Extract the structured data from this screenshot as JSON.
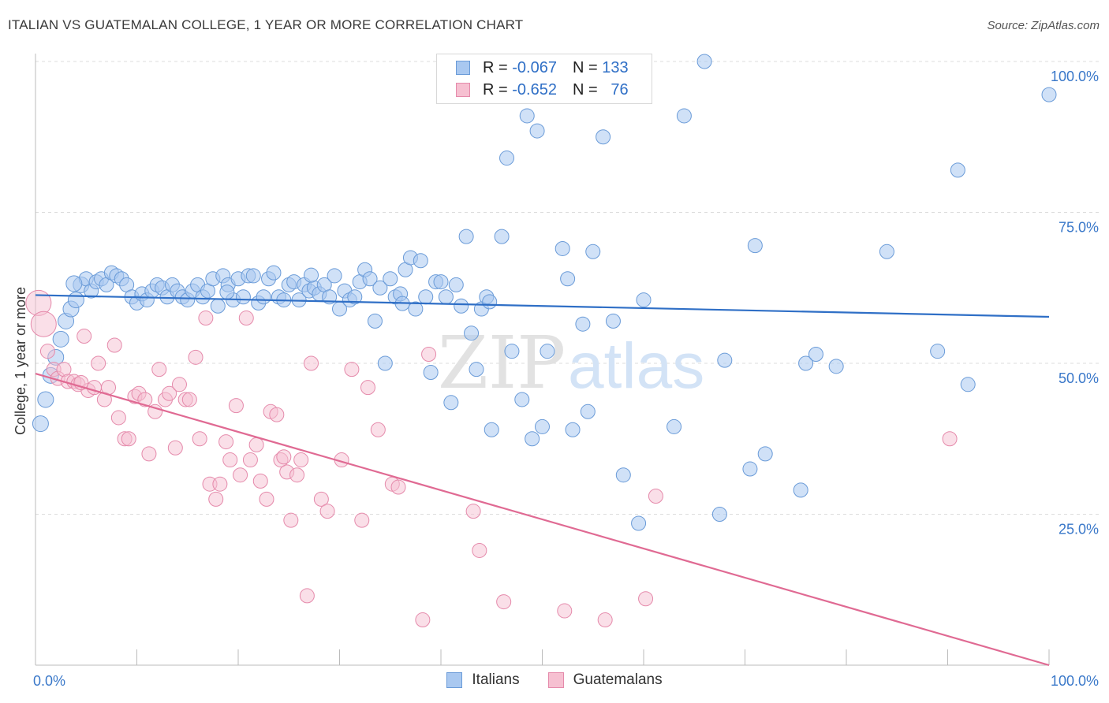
{
  "title": "ITALIAN VS GUATEMALAN COLLEGE, 1 YEAR OR MORE CORRELATION CHART",
  "source": "Source: ZipAtlas.com",
  "watermark": {
    "zip": "ZIP",
    "atlas": "atlas"
  },
  "legend_top": [
    {
      "r_label": "R =",
      "r_value": "-0.067",
      "n_label": "N =",
      "n_value": "133"
    },
    {
      "r_label": "R =",
      "r_value": "-0.652",
      "n_label": "N =",
      "n_value": "76"
    }
  ],
  "legend_bottom": [
    {
      "label": "Italians"
    },
    {
      "label": "Guatemalans"
    }
  ],
  "colors": {
    "italians_fill": "#a9c8f0",
    "italians_stroke": "#6a9bd8",
    "italians_line": "#2f6fc6",
    "guatemalans_fill": "#f6c0d1",
    "guatemalans_stroke": "#e58aab",
    "guatemalans_line": "#e06a93",
    "tick_label": "#3a78c9",
    "grid": "#dddddd"
  },
  "chart_data": {
    "type": "scatter",
    "title": "ITALIAN VS GUATEMALAN COLLEGE, 1 YEAR OR MORE CORRELATION CHART",
    "xlabel": "",
    "ylabel": "College, 1 year or more",
    "xlim": [
      0,
      100
    ],
    "ylim": [
      0,
      100
    ],
    "x_tick_labels": [
      "0.0%",
      "100.0%"
    ],
    "y_ticks": [
      25,
      50,
      75,
      100
    ],
    "y_tick_labels": [
      "25.0%",
      "50.0%",
      "75.0%",
      "100.0%"
    ],
    "grid": "horizontal dashed",
    "legend_position": "top-center",
    "series": [
      {
        "name": "Italians",
        "r": -0.067,
        "n": 133,
        "trend": [
          [
            0,
            61.3
          ],
          [
            100,
            57.7
          ]
        ],
        "points": [
          [
            0.5,
            40
          ],
          [
            1,
            44
          ],
          [
            1.5,
            48
          ],
          [
            2,
            51
          ],
          [
            2.5,
            54
          ],
          [
            3,
            57
          ],
          [
            3.5,
            59
          ],
          [
            4,
            60.5
          ],
          [
            4.5,
            63
          ],
          [
            5,
            64
          ],
          [
            5.5,
            62
          ],
          [
            6,
            63.5
          ],
          [
            6.5,
            64
          ],
          [
            7,
            63
          ],
          [
            7.5,
            65
          ],
          [
            8,
            64.5
          ],
          [
            8.5,
            64
          ],
          [
            9,
            63
          ],
          [
            9.5,
            61
          ],
          [
            10,
            60
          ],
          [
            10.5,
            61.5
          ],
          [
            11,
            60.5
          ],
          [
            11.5,
            62
          ],
          [
            12,
            63
          ],
          [
            12.5,
            62.5
          ],
          [
            13,
            61
          ],
          [
            13.5,
            63
          ],
          [
            14,
            62
          ],
          [
            14.5,
            61
          ],
          [
            15,
            60.5
          ],
          [
            15.5,
            62
          ],
          [
            16,
            63
          ],
          [
            16.5,
            61
          ],
          [
            17,
            62
          ],
          [
            17.5,
            64
          ],
          [
            18,
            59.5
          ],
          [
            18.5,
            64.5
          ],
          [
            19,
            63
          ],
          [
            19.5,
            60.5
          ],
          [
            20,
            64
          ],
          [
            20.5,
            61
          ],
          [
            21,
            64.5
          ],
          [
            21.5,
            64.5
          ],
          [
            22,
            60
          ],
          [
            22.5,
            61
          ],
          [
            23,
            64
          ],
          [
            23.5,
            65
          ],
          [
            24,
            61
          ],
          [
            24.5,
            60.5
          ],
          [
            25,
            63
          ],
          [
            25.5,
            63.5
          ],
          [
            26,
            60.5
          ],
          [
            26.5,
            63
          ],
          [
            27,
            62
          ],
          [
            27.5,
            62.5
          ],
          [
            28,
            61.5
          ],
          [
            28.5,
            63
          ],
          [
            29,
            61
          ],
          [
            29.5,
            64.5
          ],
          [
            30,
            59
          ],
          [
            30.5,
            62
          ],
          [
            31,
            60.5
          ],
          [
            31.5,
            61
          ],
          [
            32,
            63.5
          ],
          [
            32.5,
            65.5
          ],
          [
            33,
            64
          ],
          [
            33.5,
            57
          ],
          [
            34,
            62.5
          ],
          [
            34.5,
            50
          ],
          [
            35,
            64
          ],
          [
            35.5,
            61
          ],
          [
            36,
            61.5
          ],
          [
            36.5,
            65.5
          ],
          [
            37,
            67.5
          ],
          [
            37.5,
            59
          ],
          [
            38,
            67
          ],
          [
            38.5,
            61
          ],
          [
            39,
            48.5
          ],
          [
            39.5,
            63.5
          ],
          [
            40,
            63.5
          ],
          [
            40.5,
            61
          ],
          [
            41,
            43.5
          ],
          [
            41.5,
            63
          ],
          [
            42,
            59.5
          ],
          [
            42.5,
            71
          ],
          [
            43,
            55
          ],
          [
            43.5,
            49
          ],
          [
            44,
            59
          ],
          [
            44.5,
            61
          ],
          [
            45,
            39
          ],
          [
            46,
            71
          ],
          [
            46.5,
            84
          ],
          [
            47,
            52
          ],
          [
            48,
            44
          ],
          [
            48.5,
            91
          ],
          [
            49,
            37.5
          ],
          [
            49.5,
            88.5
          ],
          [
            50,
            39.5
          ],
          [
            50.5,
            52
          ],
          [
            52,
            69
          ],
          [
            52.5,
            64
          ],
          [
            53,
            39
          ],
          [
            54,
            56.5
          ],
          [
            54.5,
            42
          ],
          [
            55,
            68.5
          ],
          [
            56,
            87.5
          ],
          [
            57,
            57
          ],
          [
            58,
            31.5
          ],
          [
            59.5,
            23.5
          ],
          [
            60,
            60.5
          ],
          [
            63,
            39.5
          ],
          [
            64,
            91
          ],
          [
            66,
            100
          ],
          [
            67.5,
            25
          ],
          [
            68,
            50.5
          ],
          [
            70.5,
            32.5
          ],
          [
            71,
            69.5
          ],
          [
            72,
            35
          ],
          [
            75.5,
            29
          ],
          [
            76,
            50
          ],
          [
            77,
            51.5
          ],
          [
            79,
            49.5
          ],
          [
            84,
            68.5
          ],
          [
            89,
            52
          ],
          [
            91,
            82
          ],
          [
            92,
            46.5
          ],
          [
            100,
            94.5
          ],
          [
            52.5,
            96
          ],
          [
            3.8,
            63.2
          ],
          [
            18.9,
            61.8
          ],
          [
            27.2,
            64.6
          ],
          [
            36.2,
            59.9
          ],
          [
            44.8,
            60.2
          ]
        ]
      },
      {
        "name": "Guatemalans",
        "r": -0.652,
        "n": 76,
        "trend": [
          [
            0,
            48.3
          ],
          [
            100,
            0
          ]
        ],
        "points": [
          [
            0.3,
            60
          ],
          [
            0.8,
            56.5
          ],
          [
            1.2,
            52
          ],
          [
            1.8,
            49
          ],
          [
            2.2,
            47.5
          ],
          [
            2.8,
            49
          ],
          [
            3.2,
            47
          ],
          [
            3.8,
            47
          ],
          [
            4.2,
            46.5
          ],
          [
            4.8,
            54.5
          ],
          [
            5.2,
            45.5
          ],
          [
            5.8,
            46
          ],
          [
            6.2,
            50
          ],
          [
            6.8,
            44
          ],
          [
            7.2,
            46
          ],
          [
            7.8,
            53
          ],
          [
            8.2,
            41
          ],
          [
            8.8,
            37.5
          ],
          [
            9.2,
            37.5
          ],
          [
            9.8,
            44.5
          ],
          [
            10.2,
            45
          ],
          [
            10.8,
            44
          ],
          [
            11.2,
            35
          ],
          [
            11.8,
            42
          ],
          [
            12.2,
            49
          ],
          [
            12.8,
            44
          ],
          [
            13.2,
            45
          ],
          [
            13.8,
            36
          ],
          [
            14.2,
            46.5
          ],
          [
            14.8,
            44
          ],
          [
            15.2,
            44
          ],
          [
            15.8,
            51
          ],
          [
            16.2,
            37.5
          ],
          [
            16.8,
            57.5
          ],
          [
            17.2,
            30
          ],
          [
            17.8,
            27.5
          ],
          [
            18.2,
            30
          ],
          [
            18.8,
            37
          ],
          [
            19.2,
            34
          ],
          [
            19.8,
            43
          ],
          [
            20.2,
            31.5
          ],
          [
            20.8,
            57.5
          ],
          [
            21.2,
            34
          ],
          [
            21.8,
            36.5
          ],
          [
            22.2,
            30.5
          ],
          [
            22.8,
            27.5
          ],
          [
            23.2,
            42
          ],
          [
            23.8,
            41.5
          ],
          [
            24.2,
            34
          ],
          [
            24.8,
            32
          ],
          [
            25.2,
            24
          ],
          [
            25.8,
            31.5
          ],
          [
            26.2,
            34
          ],
          [
            26.8,
            11.5
          ],
          [
            27.2,
            50
          ],
          [
            28.2,
            27.5
          ],
          [
            28.8,
            25.5
          ],
          [
            30.2,
            34
          ],
          [
            31.2,
            49
          ],
          [
            32.2,
            24
          ],
          [
            32.8,
            46
          ],
          [
            33.8,
            39
          ],
          [
            35.2,
            30
          ],
          [
            35.8,
            29.5
          ],
          [
            38.2,
            7.5
          ],
          [
            38.8,
            51.5
          ],
          [
            43.2,
            25.5
          ],
          [
            43.8,
            19
          ],
          [
            46.2,
            10.5
          ],
          [
            52.2,
            9
          ],
          [
            56.2,
            7.5
          ],
          [
            60.2,
            11
          ],
          [
            61.2,
            28
          ],
          [
            90.2,
            37.5
          ],
          [
            24.5,
            34.5
          ],
          [
            4.5,
            46.8
          ]
        ]
      }
    ]
  }
}
